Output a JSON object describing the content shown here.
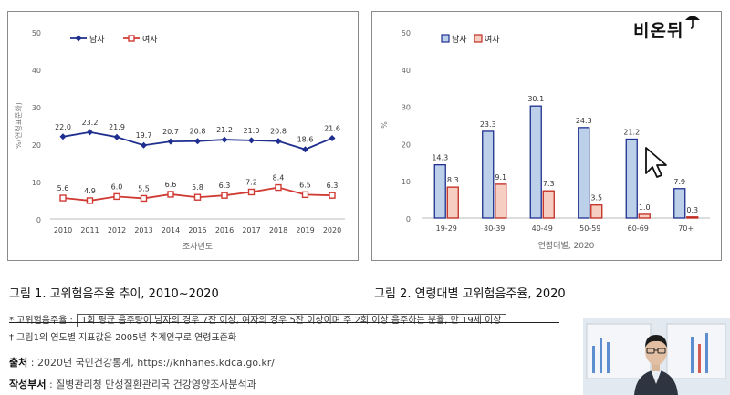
{
  "chart_data": [
    {
      "type": "line",
      "x": [
        "2010",
        "2011",
        "2012",
        "2013",
        "2014",
        "2015",
        "2016",
        "2017",
        "2018",
        "2019",
        "2020"
      ],
      "series": [
        {
          "name": "남자",
          "values": [
            22.0,
            23.2,
            21.9,
            19.7,
            20.7,
            20.8,
            21.2,
            21.0,
            20.8,
            18.6,
            21.6
          ],
          "color": "#1f2f8f",
          "marker": "diamond"
        },
        {
          "name": "여자",
          "values": [
            5.6,
            4.9,
            6.0,
            5.5,
            6.6,
            5.8,
            6.3,
            7.2,
            8.4,
            6.5,
            6.3
          ],
          "color": "#d03a33",
          "marker": "square"
        }
      ],
      "labels": [
        "22.0",
        "23.2",
        "21.9",
        "19.7",
        "20.7",
        "20.8",
        "21.2",
        "21.0",
        "20.8",
        "18.6",
        "21.6"
      ],
      "labels2": [
        "5.6",
        "4.9",
        "6.0",
        "5.5",
        "6.6",
        "5.8",
        "6.3",
        "7.2",
        "8.4",
        "6.5",
        "6.3"
      ],
      "yticks": [
        "0",
        "10",
        "20",
        "30",
        "40",
        "50"
      ],
      "ylim": [
        0,
        50
      ],
      "ylabel": "%(연령표준화)",
      "xlabel": "조사년도",
      "legend": "top-left",
      "grid": false
    },
    {
      "type": "bar",
      "categories": [
        "19-29",
        "30-39",
        "40-49",
        "50-59",
        "60-69",
        "70+"
      ],
      "series": [
        {
          "name": "남자",
          "values": [
            14.3,
            23.3,
            30.1,
            24.3,
            21.2,
            7.9
          ],
          "color": "#bcd0ea",
          "edge": "#1f2f8f"
        },
        {
          "name": "여자",
          "values": [
            8.3,
            9.1,
            7.3,
            3.5,
            1.0,
            0.3
          ],
          "color": "#f6cfc2",
          "edge": "#c22a1f"
        }
      ],
      "labels": [
        "14.3",
        "23.3",
        "30.1",
        "24.3",
        "21.2",
        "7.9"
      ],
      "labels2": [
        "8.3",
        "9.1",
        "7.3",
        "3.5",
        "1.0",
        "0.3"
      ],
      "yticks": [
        "0",
        "10",
        "20",
        "30",
        "40",
        "50"
      ],
      "ylim": [
        0,
        50
      ],
      "ylabel": "%",
      "xlabel": "연령대별, 2020",
      "legend": "top-left",
      "grid": false
    }
  ],
  "captions": {
    "fig1": "그림 1. 고위험음주율 추이, 2010~2020",
    "fig2": "그림 2. 연령대별 고위험음주율, 2020"
  },
  "notes": {
    "term": "* 고위험음주율 :",
    "definition": "1회 평균 음주량이 남자의 경우 7잔 이상, 여자의 경우 5잔 이상이며 주 2회 이상 음주하는 분율, 만 19세 이상",
    "note2": "† 그림1의 연도별 지표값은 2005년 추계인구로 연령표준화"
  },
  "source": {
    "label": "출처",
    "text": ": 2020년 국민건강통계, https://knhanes.kdca.go.kr/",
    "dept_label": "작성부서",
    "dept_text": ": 질병관리청 만성질환관리국 건강영양조사분석과"
  },
  "logo": {
    "text": "비온뒤"
  }
}
